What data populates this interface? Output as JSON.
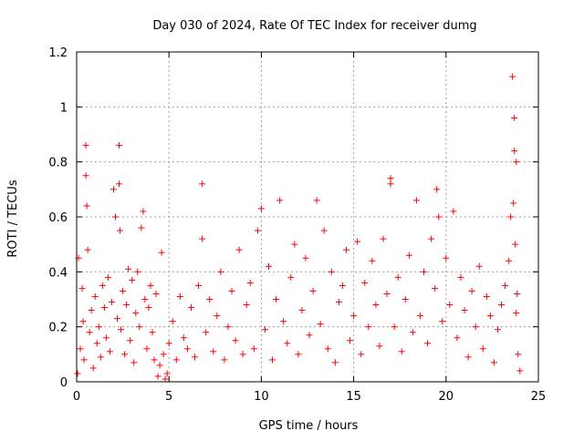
{
  "chart_data": {
    "type": "scatter",
    "title": "Day 030 of 2024, Rate Of TEC Index for receiver dumg",
    "xlabel": "GPS time / hours",
    "ylabel": "ROTI / TECUs",
    "xlim": [
      0,
      25
    ],
    "ylim": [
      0,
      1.2
    ],
    "xticks": [
      "0",
      "5",
      "10",
      "15",
      "20",
      "25"
    ],
    "yticks": [
      "0",
      "0.2",
      "0.4",
      "0.6",
      "0.8",
      "1",
      "1.2"
    ],
    "grid": true,
    "marker": "+",
    "color": "#ff0000",
    "series": [
      {
        "x": [
          0.05,
          0.1,
          0.2,
          0.3,
          0.35,
          0.4,
          0.5,
          0.5,
          0.55,
          0.6,
          0.7,
          0.8,
          0.9,
          1.0,
          1.1,
          1.2,
          1.3,
          1.4,
          1.5,
          1.6,
          1.7,
          1.8,
          1.9,
          2.0,
          2.1,
          2.2,
          2.3,
          2.3,
          2.35,
          2.4,
          2.5,
          2.6,
          2.7,
          2.8,
          2.9,
          3.0,
          3.1,
          3.2,
          3.3,
          3.4,
          3.5,
          3.6,
          3.7,
          3.8,
          3.9,
          4.0,
          4.1,
          4.2,
          4.3,
          4.4,
          4.5,
          4.6,
          4.7,
          4.8,
          4.9,
          5.0,
          5.2,
          5.4,
          5.6,
          5.8,
          6.0,
          6.2,
          6.4,
          6.6,
          6.8,
          6.8,
          7.0,
          7.2,
          7.4,
          7.6,
          7.8,
          8.0,
          8.2,
          8.4,
          8.6,
          8.8,
          9.0,
          9.2,
          9.4,
          9.6,
          9.8,
          10.0,
          10.2,
          10.4,
          10.6,
          10.8,
          11.0,
          11.2,
          11.4,
          11.6,
          11.8,
          12.0,
          12.2,
          12.4,
          12.6,
          12.8,
          13.0,
          13.2,
          13.4,
          13.6,
          13.8,
          14.0,
          14.2,
          14.4,
          14.6,
          14.8,
          15.0,
          15.2,
          15.4,
          15.6,
          15.8,
          16.0,
          16.2,
          16.4,
          16.6,
          16.8,
          17.0,
          17.0,
          17.2,
          17.4,
          17.6,
          17.8,
          18.0,
          18.2,
          18.4,
          18.6,
          18.8,
          19.0,
          19.2,
          19.4,
          19.5,
          19.6,
          19.8,
          20.0,
          20.2,
          20.4,
          20.6,
          20.8,
          21.0,
          21.2,
          21.4,
          21.6,
          21.8,
          22.0,
          22.2,
          22.4,
          22.6,
          22.8,
          23.0,
          23.2,
          23.4,
          23.5,
          23.6,
          23.65,
          23.7,
          23.7,
          23.75,
          23.8,
          23.8,
          23.85,
          23.9,
          24.0
        ],
        "y": [
          0.03,
          0.45,
          0.12,
          0.34,
          0.22,
          0.08,
          0.86,
          0.75,
          0.64,
          0.48,
          0.18,
          0.26,
          0.05,
          0.31,
          0.14,
          0.2,
          0.09,
          0.35,
          0.27,
          0.16,
          0.38,
          0.11,
          0.29,
          0.7,
          0.6,
          0.23,
          0.86,
          0.72,
          0.55,
          0.19,
          0.33,
          0.1,
          0.28,
          0.41,
          0.15,
          0.37,
          0.07,
          0.25,
          0.4,
          0.2,
          0.56,
          0.62,
          0.3,
          0.12,
          0.27,
          0.35,
          0.18,
          0.08,
          0.32,
          0.02,
          0.06,
          0.47,
          0.1,
          0.01,
          0.03,
          0.14,
          0.22,
          0.08,
          0.31,
          0.16,
          0.12,
          0.27,
          0.09,
          0.35,
          0.72,
          0.52,
          0.18,
          0.3,
          0.11,
          0.24,
          0.4,
          0.08,
          0.2,
          0.33,
          0.15,
          0.48,
          0.1,
          0.28,
          0.36,
          0.12,
          0.55,
          0.63,
          0.19,
          0.42,
          0.08,
          0.3,
          0.66,
          0.22,
          0.14,
          0.38,
          0.5,
          0.1,
          0.26,
          0.45,
          0.17,
          0.33,
          0.66,
          0.21,
          0.55,
          0.12,
          0.4,
          0.07,
          0.29,
          0.35,
          0.48,
          0.15,
          0.24,
          0.51,
          0.1,
          0.36,
          0.2,
          0.44,
          0.28,
          0.13,
          0.52,
          0.32,
          0.74,
          0.72,
          0.2,
          0.38,
          0.11,
          0.3,
          0.46,
          0.18,
          0.66,
          0.24,
          0.4,
          0.14,
          0.52,
          0.34,
          0.7,
          0.6,
          0.22,
          0.45,
          0.28,
          0.62,
          0.16,
          0.38,
          0.26,
          0.09,
          0.33,
          0.2,
          0.42,
          0.12,
          0.31,
          0.24,
          0.07,
          0.19,
          0.28,
          0.35,
          0.44,
          0.6,
          1.11,
          0.65,
          0.96,
          0.84,
          0.5,
          0.25,
          0.8,
          0.32,
          0.1,
          0.04
        ]
      }
    ]
  }
}
